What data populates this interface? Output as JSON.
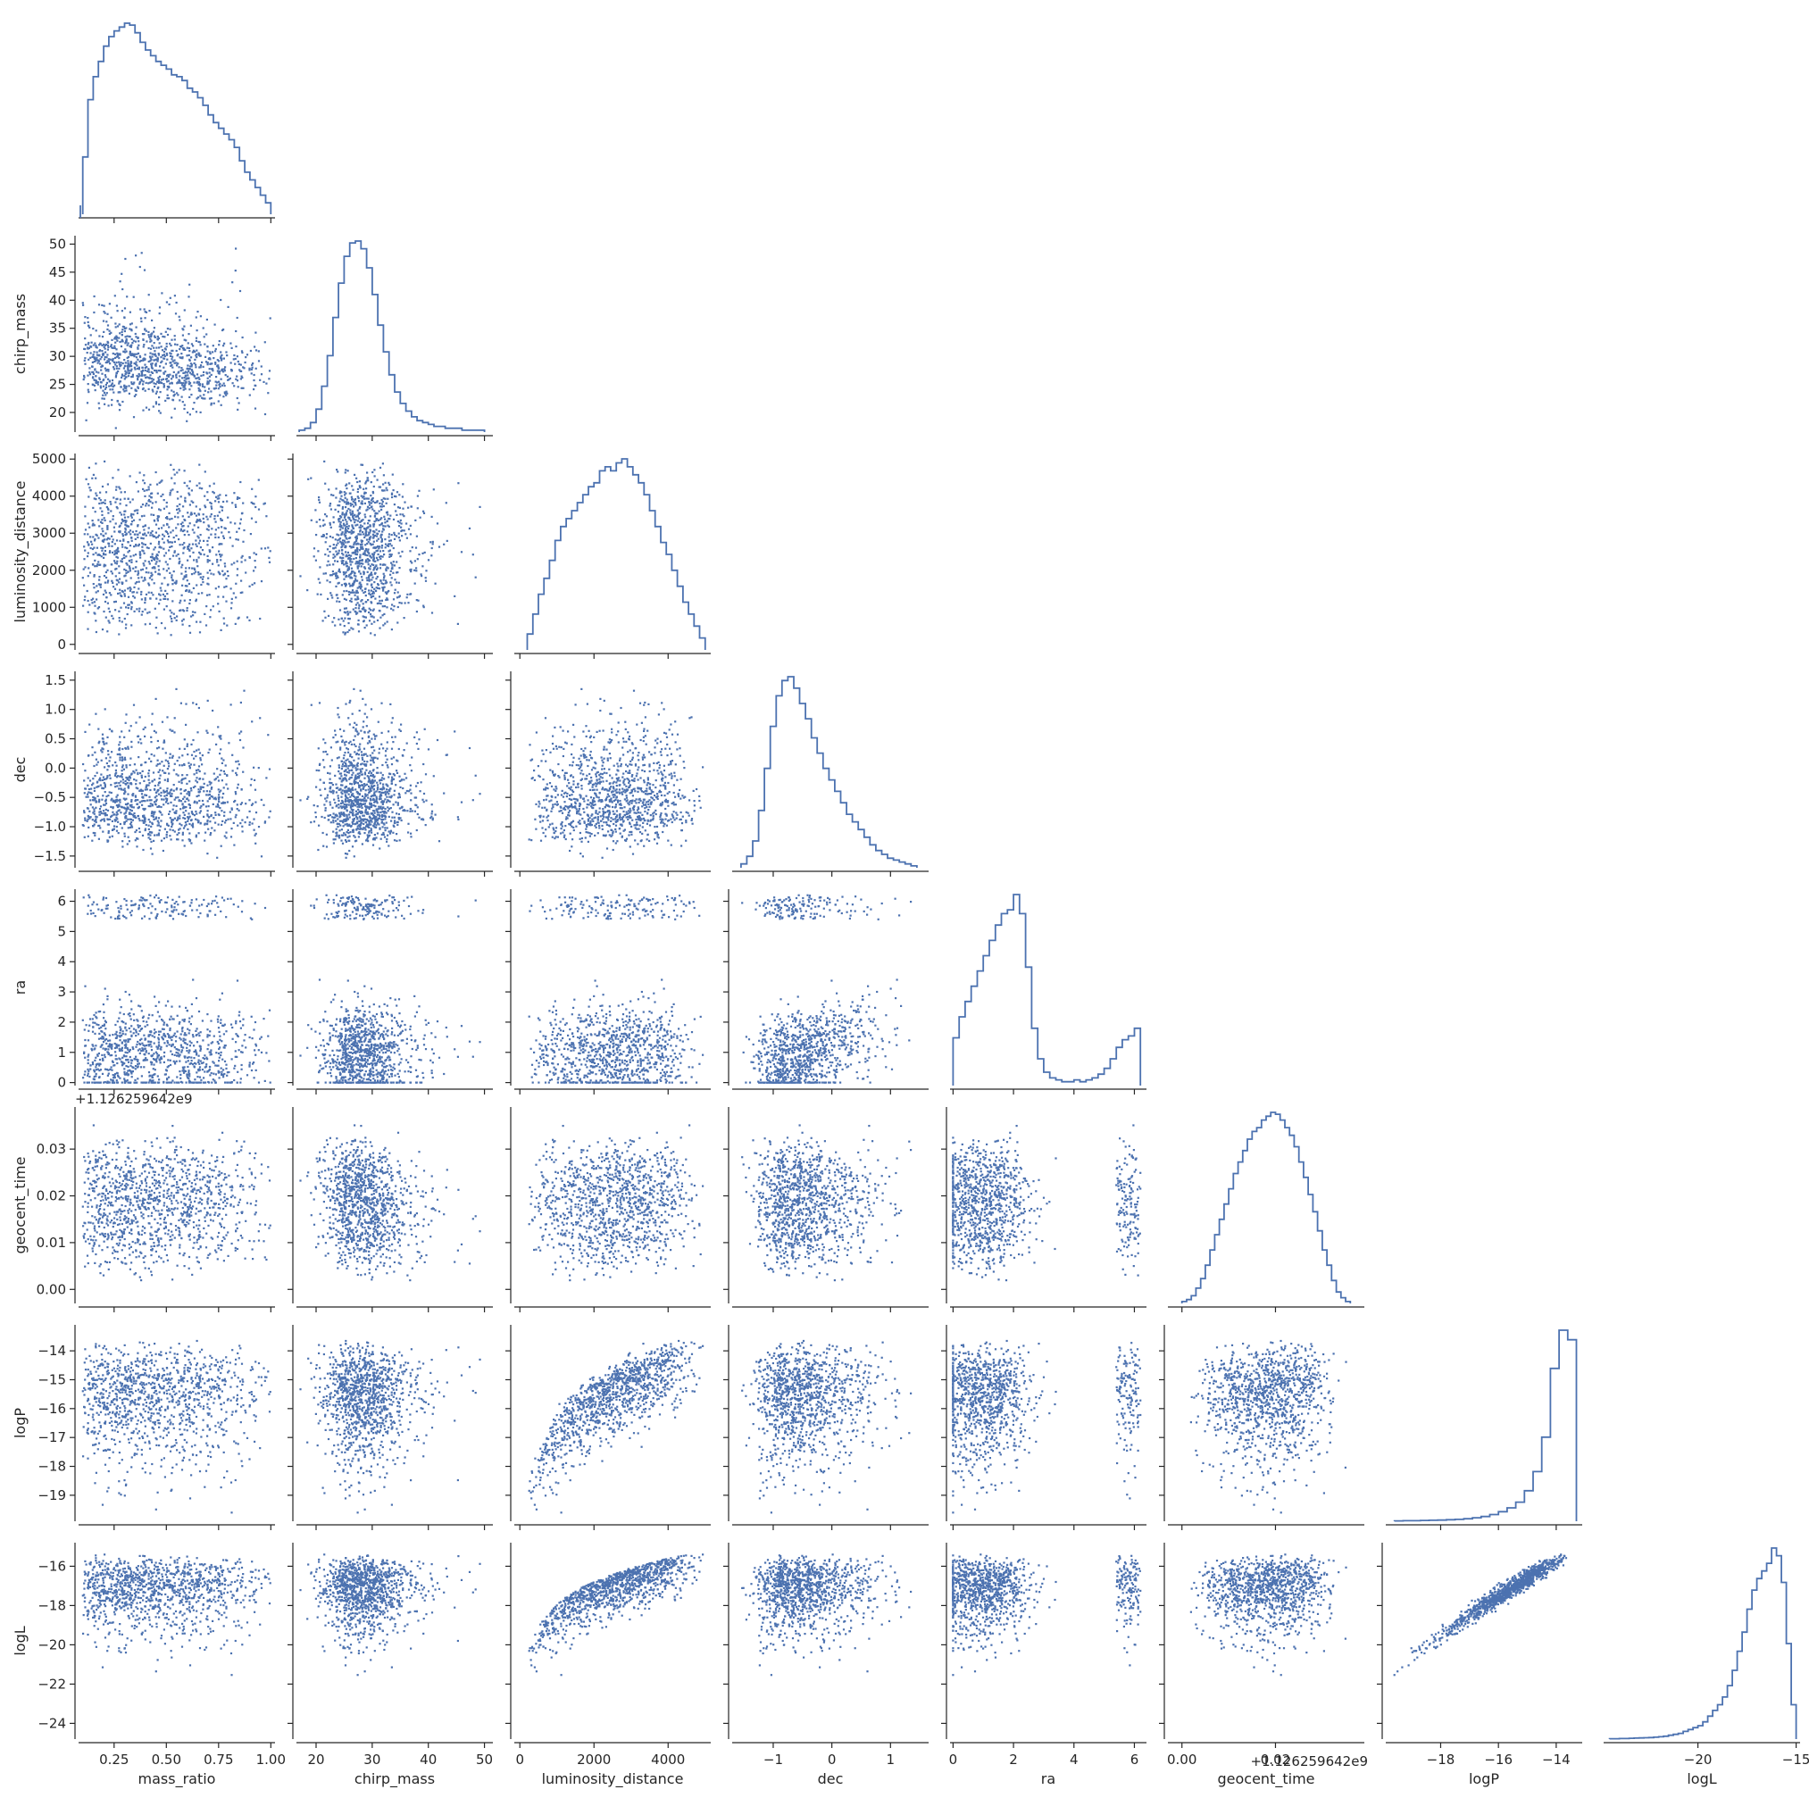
{
  "chart_data": {
    "type": "scatter",
    "layout": "corner pair plot (lower triangle scatter, diagonal step histograms)",
    "marker_color": "#4c72b0",
    "grid": false,
    "variables": [
      {
        "name": "mass_ratio",
        "xlabel": "mass_ratio",
        "ylabel": "",
        "range": [
          0.08,
          1.02
        ],
        "xticks": [
          0.25,
          0.5,
          0.75,
          1.0
        ],
        "xtick_labels": [
          "0.25",
          "0.50",
          "0.75",
          "1.00"
        ],
        "yticks": [],
        "ytick_labels": []
      },
      {
        "name": "chirp_mass",
        "xlabel": "chirp_mass",
        "ylabel": "chirp_mass",
        "range": [
          16.5,
          51.5
        ],
        "xticks": [
          20,
          30,
          40,
          50
        ],
        "xtick_labels": [
          "20",
          "30",
          "40",
          "50"
        ],
        "yticks": [
          20,
          25,
          30,
          35,
          40,
          45,
          50
        ],
        "ytick_labels": [
          "20",
          "25",
          "30",
          "35",
          "40",
          "45",
          "50"
        ]
      },
      {
        "name": "luminosity_distance",
        "xlabel": "luminosity_distance",
        "ylabel": "luminosity_distance",
        "range": [
          -150,
          5150
        ],
        "xticks": [
          0,
          2000,
          4000
        ],
        "xtick_labels": [
          "0",
          "2000",
          "4000"
        ],
        "yticks": [
          0,
          1000,
          2000,
          3000,
          4000,
          5000
        ],
        "ytick_labels": [
          "0",
          "1000",
          "2000",
          "3000",
          "4000",
          "5000"
        ]
      },
      {
        "name": "dec",
        "xlabel": "dec",
        "ylabel": "dec",
        "range": [
          -1.7,
          1.65
        ],
        "xticks": [
          -1,
          0,
          1
        ],
        "xtick_labels": [
          "−1",
          "0",
          "1"
        ],
        "yticks": [
          -1.5,
          -1.0,
          -0.5,
          0.0,
          0.5,
          1.0,
          1.5
        ],
        "ytick_labels": [
          "−1.5",
          "−1.0",
          "−0.5",
          "0.0",
          "0.5",
          "1.0",
          "1.5"
        ]
      },
      {
        "name": "ra",
        "xlabel": "ra",
        "ylabel": "ra",
        "range": [
          -0.1,
          6.4
        ],
        "xticks": [
          0,
          2,
          4,
          6
        ],
        "xtick_labels": [
          "0",
          "2",
          "4",
          "6"
        ],
        "yticks": [
          0,
          1,
          2,
          3,
          4,
          5,
          6
        ],
        "ytick_labels": [
          "0",
          "1",
          "2",
          "3",
          "4",
          "5",
          "6"
        ]
      },
      {
        "name": "geocent_time",
        "xlabel": "geocent_time",
        "ylabel": "geocent_time",
        "range": [
          -0.003,
          0.039
        ],
        "xticks": [
          0.0,
          0.02
        ],
        "xtick_labels": [
          "0.00",
          "0.02"
        ],
        "yticks": [
          0.0,
          0.01,
          0.02,
          0.03
        ],
        "ytick_labels": [
          "0.00",
          "0.01",
          "0.02",
          "0.03"
        ],
        "offset_label": "+1.126259642e9"
      },
      {
        "name": "logP",
        "xlabel": "logP",
        "ylabel": "logP",
        "range": [
          -19.9,
          -13.1
        ],
        "xticks": [
          -18,
          -16,
          -14
        ],
        "xtick_labels": [
          "−18",
          "−16",
          "−14"
        ],
        "yticks": [
          -19,
          -18,
          -17,
          -16,
          -15,
          -14
        ],
        "ytick_labels": [
          "−19",
          "−18",
          "−17",
          "−16",
          "−15",
          "−14"
        ]
      },
      {
        "name": "logL",
        "xlabel": "logL",
        "ylabel": "logL",
        "range": [
          -24.8,
          -14.8
        ],
        "xticks": [
          -20,
          -15
        ],
        "xtick_labels": [
          "−20",
          "−15"
        ],
        "yticks": [
          -24,
          -22,
          -20,
          -18,
          -16
        ],
        "ytick_labels": [
          "−24",
          "−22",
          "−20",
          "−18",
          "−16"
        ]
      }
    ],
    "histograms": [
      {
        "variable": "mass_ratio",
        "bins": [
          0.1,
          0.125,
          0.15,
          0.175,
          0.2,
          0.225,
          0.25,
          0.275,
          0.3,
          0.325,
          0.35,
          0.375,
          0.4,
          0.425,
          0.45,
          0.475,
          0.5,
          0.525,
          0.55,
          0.575,
          0.6,
          0.625,
          0.65,
          0.675,
          0.7,
          0.725,
          0.75,
          0.775,
          0.8,
          0.825,
          0.85,
          0.875,
          0.9,
          0.925,
          0.95,
          0.975,
          1.0
        ],
        "counts": [
          30,
          60,
          72,
          80,
          88,
          93,
          96,
          98,
          100,
          99,
          95,
          90,
          86,
          83,
          80,
          78,
          76,
          73,
          72,
          70,
          66,
          64,
          61,
          57,
          52,
          48,
          45,
          42,
          39,
          35,
          28,
          22,
          18,
          14,
          10,
          6
        ]
      },
      {
        "variable": "chirp_mass",
        "bins": [
          17,
          18,
          19,
          20,
          21,
          22,
          23,
          24,
          25,
          26,
          27,
          28,
          29,
          30,
          31,
          32,
          33,
          34,
          35,
          36,
          37,
          38,
          39,
          40,
          41,
          42,
          43,
          44,
          45,
          46,
          47,
          48,
          49,
          50
        ],
        "counts": [
          1,
          2,
          5,
          12,
          24,
          40,
          60,
          78,
          92,
          99,
          100,
          96,
          86,
          72,
          56,
          42,
          30,
          21,
          15,
          11,
          8,
          6,
          5,
          4,
          3,
          3,
          2,
          2,
          2,
          1,
          1,
          1,
          1
        ]
      },
      {
        "variable": "luminosity_distance",
        "bins": [
          200,
          350,
          500,
          650,
          800,
          950,
          1100,
          1250,
          1400,
          1550,
          1700,
          1850,
          2000,
          2150,
          2300,
          2450,
          2600,
          2750,
          2900,
          3050,
          3200,
          3350,
          3500,
          3650,
          3800,
          3950,
          4100,
          4250,
          4400,
          4550,
          4700,
          4850,
          5000
        ],
        "counts": [
          8,
          18,
          28,
          36,
          45,
          55,
          62,
          66,
          70,
          74,
          78,
          82,
          84,
          90,
          92,
          90,
          94,
          96,
          92,
          88,
          84,
          78,
          70,
          62,
          54,
          48,
          40,
          32,
          24,
          18,
          12,
          6
        ]
      },
      {
        "variable": "dec",
        "bins": [
          -1.55,
          -1.45,
          -1.35,
          -1.25,
          -1.15,
          -1.05,
          -0.95,
          -0.85,
          -0.75,
          -0.65,
          -0.55,
          -0.45,
          -0.35,
          -0.25,
          -0.15,
          -0.05,
          0.05,
          0.15,
          0.25,
          0.35,
          0.45,
          0.55,
          0.65,
          0.75,
          0.85,
          0.95,
          1.05,
          1.15,
          1.25,
          1.35,
          1.45
        ],
        "counts": [
          2,
          6,
          14,
          30,
          52,
          74,
          90,
          98,
          100,
          94,
          86,
          78,
          68,
          60,
          52,
          46,
          40,
          34,
          28,
          24,
          20,
          16,
          12,
          9,
          7,
          5,
          4,
          3,
          2,
          1
        ]
      },
      {
        "variable": "ra",
        "bins": [
          0.0,
          0.2,
          0.4,
          0.6,
          0.8,
          1.0,
          1.2,
          1.4,
          1.6,
          1.8,
          2.0,
          2.2,
          2.4,
          2.6,
          2.8,
          3.0,
          3.2,
          3.4,
          3.6,
          3.8,
          4.0,
          4.2,
          4.4,
          4.6,
          4.8,
          5.0,
          5.2,
          5.4,
          5.6,
          5.8,
          6.0,
          6.2
        ],
        "counts": [
          25,
          36,
          44,
          52,
          60,
          68,
          76,
          84,
          90,
          92,
          100,
          90,
          62,
          30,
          14,
          7,
          4,
          3,
          2,
          2,
          3,
          2,
          3,
          4,
          6,
          9,
          14,
          20,
          24,
          26,
          30
        ]
      },
      {
        "variable": "geocent_time",
        "bins": [
          0.0,
          0.001,
          0.002,
          0.003,
          0.004,
          0.005,
          0.006,
          0.007,
          0.008,
          0.009,
          0.01,
          0.011,
          0.012,
          0.013,
          0.014,
          0.015,
          0.016,
          0.017,
          0.018,
          0.019,
          0.02,
          0.021,
          0.022,
          0.023,
          0.024,
          0.025,
          0.026,
          0.027,
          0.028,
          0.029,
          0.03,
          0.031,
          0.032,
          0.033,
          0.034,
          0.035,
          0.036
        ],
        "counts": [
          1,
          2,
          4,
          8,
          13,
          20,
          28,
          36,
          44,
          52,
          60,
          68,
          74,
          80,
          86,
          90,
          92,
          96,
          98,
          100,
          99,
          96,
          92,
          88,
          82,
          74,
          66,
          57,
          48,
          38,
          28,
          20,
          12,
          6,
          3,
          1
        ]
      },
      {
        "variable": "logP",
        "bins": [
          -19.6,
          -19.3,
          -19.0,
          -18.7,
          -18.4,
          -18.1,
          -17.8,
          -17.5,
          -17.2,
          -16.9,
          -16.6,
          -16.3,
          -16.0,
          -15.7,
          -15.4,
          -15.1,
          -14.8,
          -14.5,
          -14.2,
          -13.9,
          -13.6,
          -13.3
        ],
        "counts": [
          0.2,
          0.3,
          0.3,
          0.4,
          0.5,
          0.6,
          0.8,
          1,
          1.3,
          1.8,
          2.5,
          3.5,
          5,
          7,
          10,
          16,
          26,
          44,
          80,
          100,
          95
        ]
      },
      {
        "variable": "logL",
        "bins": [
          -24.5,
          -24.25,
          -24.0,
          -23.75,
          -23.5,
          -23.25,
          -23.0,
          -22.75,
          -22.5,
          -22.25,
          -22.0,
          -21.75,
          -21.5,
          -21.25,
          -21.0,
          -20.75,
          -20.5,
          -20.25,
          -20.0,
          -19.75,
          -19.5,
          -19.25,
          -19.0,
          -18.75,
          -18.5,
          -18.25,
          -18.0,
          -17.75,
          -17.5,
          -17.25,
          -17.0,
          -16.75,
          -16.5,
          -16.25,
          -16.0,
          -15.75,
          -15.5,
          -15.25,
          -15.0
        ],
        "counts": [
          0.2,
          0.2,
          0.3,
          0.3,
          0.4,
          0.5,
          0.6,
          0.7,
          0.8,
          1,
          1.2,
          1.5,
          2,
          2.5,
          3,
          4,
          5,
          6,
          7,
          9,
          12,
          15,
          18,
          22,
          28,
          36,
          46,
          56,
          68,
          78,
          84,
          88,
          92,
          100,
          96,
          82,
          50,
          18
        ]
      }
    ]
  }
}
